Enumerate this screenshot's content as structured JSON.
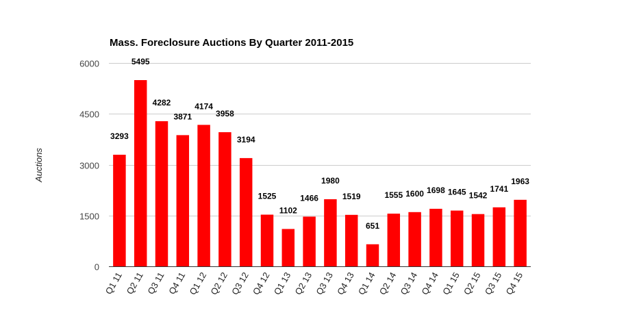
{
  "chart_data": {
    "type": "bar",
    "title": "Mass. Foreclosure Auctions By Quarter 2011-2015",
    "xlabel": "",
    "ylabel": "Auctions",
    "ylim": [
      0,
      6000
    ],
    "yticks": [
      0,
      1500,
      3000,
      4500,
      6000
    ],
    "grid": true,
    "legend": "none",
    "bar_color": "#ff0000",
    "categories": [
      "Q1 11",
      "Q2 11",
      "Q3 11",
      "Q4 11",
      "Q1 12",
      "Q2 12",
      "Q3 12",
      "Q4 12",
      "Q1 13",
      "Q2 13",
      "Q3 13",
      "Q4 13",
      "Q1 14",
      "Q2 14",
      "Q3 14",
      "Q4 14",
      "Q1 15",
      "Q2 15",
      "Q3 15",
      "Q4 15"
    ],
    "values": [
      3293,
      5495,
      4282,
      3871,
      4174,
      3958,
      3194,
      1525,
      1102,
      1466,
      1980,
      1519,
      651,
      1555,
      1600,
      1698,
      1645,
      1542,
      1741,
      1963
    ],
    "data_labels": [
      "3293",
      "5495",
      "4282",
      "3871",
      "4174",
      "3958",
      "3194",
      "1525",
      "1102",
      "1466",
      "1980",
      "1519",
      "651",
      "1555",
      "1600",
      "1698",
      "1645",
      "1542",
      "1741",
      "1963"
    ]
  }
}
